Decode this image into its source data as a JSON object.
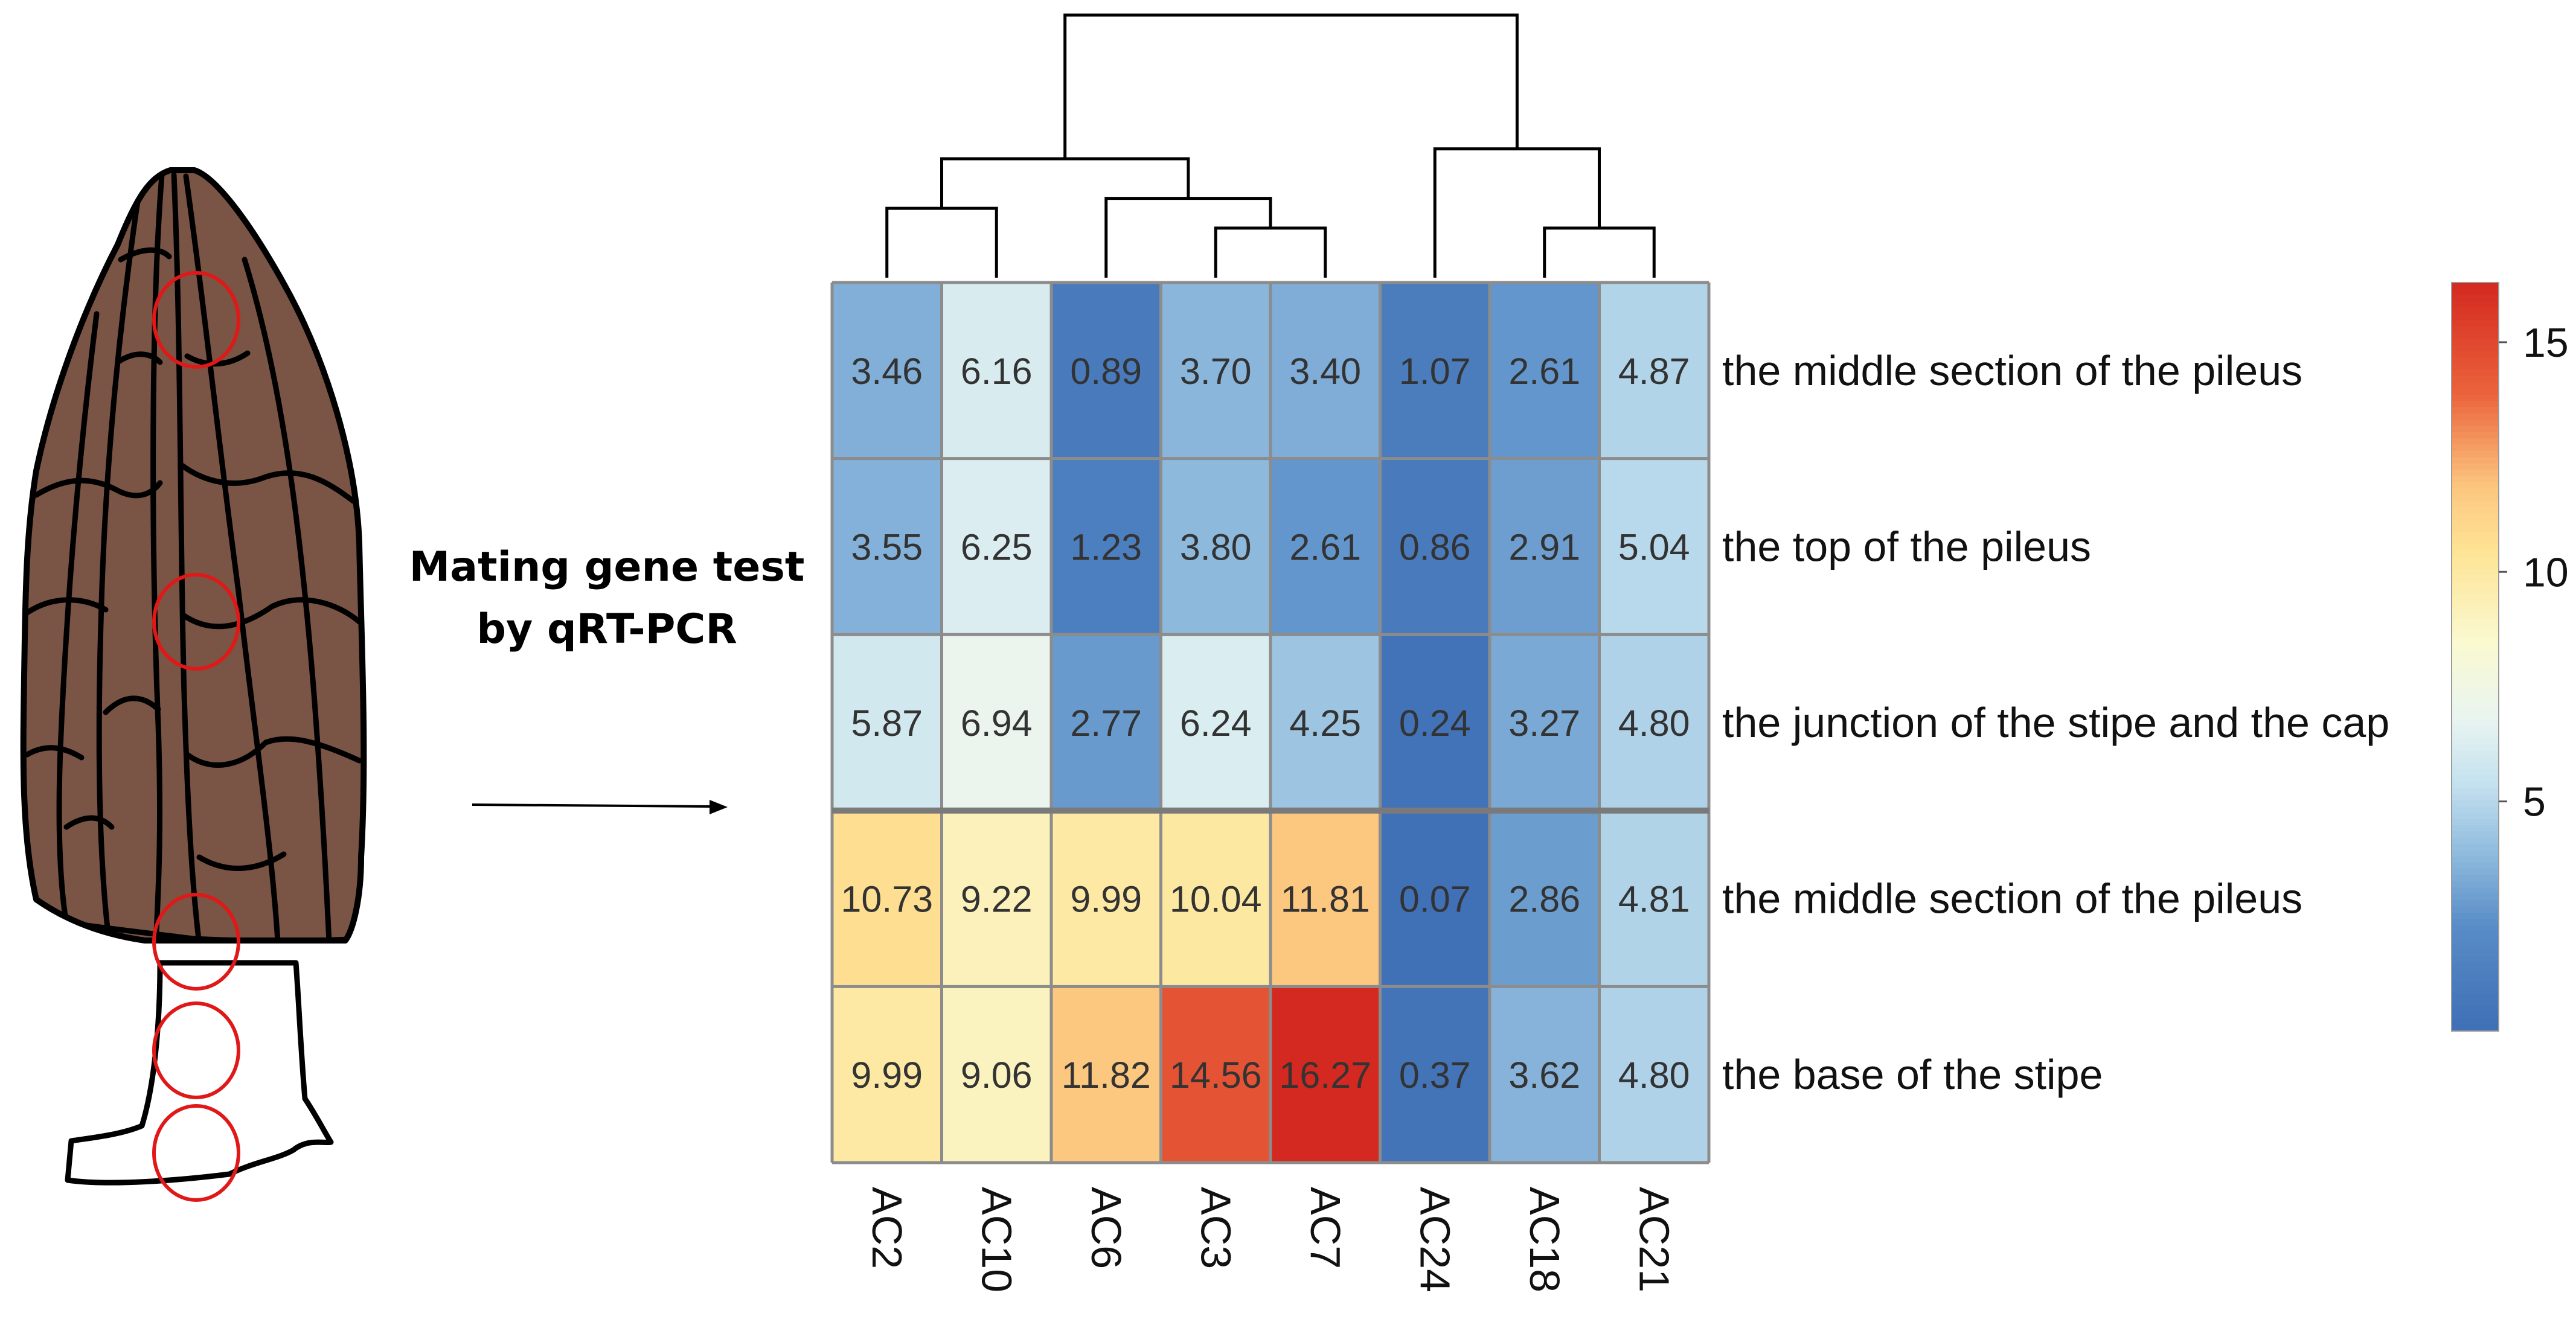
{
  "annotation": {
    "line1": "Mating gene test",
    "line2": "by qRT-PCR"
  },
  "colors": {
    "low": "#3f6fb5",
    "mid": "#f6fbdb",
    "high": "#d42a20",
    "mushroom_cap": "#7a5444",
    "sample_circle": "#e01818",
    "grid_line": "#8c8c8c"
  },
  "chart_data": {
    "type": "heatmap",
    "title": "",
    "columns": [
      "AC2",
      "AC10",
      "AC6",
      "AC3",
      "AC7",
      "AC24",
      "AC18",
      "AC21"
    ],
    "rows": [
      "the middle section of the pileus",
      "the top of the pileus",
      "the junction of the stipe and the cap",
      "the middle section of the pileus",
      "the base of the stipe"
    ],
    "values": [
      [
        3.46,
        6.16,
        0.89,
        3.7,
        3.4,
        1.07,
        2.61,
        4.87
      ],
      [
        3.55,
        6.25,
        1.23,
        3.8,
        2.61,
        0.86,
        2.91,
        5.04
      ],
      [
        5.87,
        6.94,
        2.77,
        6.24,
        4.25,
        0.24,
        3.27,
        4.8
      ],
      [
        10.73,
        9.22,
        9.99,
        10.04,
        11.81,
        0.07,
        2.86,
        4.81
      ],
      [
        9.99,
        9.06,
        11.82,
        14.56,
        16.27,
        0.37,
        3.62,
        4.8
      ]
    ],
    "value_labels": [
      [
        "3.46",
        "6.16",
        "0.89",
        "3.70",
        "3.40",
        "1.07",
        "2.61",
        "4.87"
      ],
      [
        "3.55",
        "6.25",
        "1.23",
        "3.80",
        "2.61",
        "0.86",
        "2.91",
        "5.04"
      ],
      [
        "5.87",
        "6.94",
        "2.77",
        "6.24",
        "4.25",
        "0.24",
        "3.27",
        "4.80"
      ],
      [
        "10.73",
        "9.22",
        "9.99",
        "10.04",
        "11.81",
        "0.07",
        "2.86",
        "4.81"
      ],
      [
        "9.99",
        "9.06",
        "11.82",
        "14.56",
        "16.27",
        "0.37",
        "3.62",
        "4.80"
      ]
    ],
    "row_groups": [
      [
        0,
        1,
        2
      ],
      [
        3,
        4
      ]
    ],
    "color_scale": {
      "min": 0,
      "max": 16.3,
      "midpoint": 6.5
    },
    "colorbar_ticks": [
      {
        "value": 5,
        "label": "5"
      },
      {
        "value": 10,
        "label": "10"
      },
      {
        "value": 15,
        "label": "15"
      }
    ],
    "column_dendrogram": {
      "leaves": [
        "AC2",
        "AC10",
        "AC6",
        "AC3",
        "AC7",
        "AC24",
        "AC18",
        "AC21"
      ],
      "merges": [
        {
          "a": "AC3",
          "b": "AC7",
          "height": 1
        },
        {
          "a": "AC18",
          "b": "AC21",
          "height": 1
        },
        {
          "a": "AC2",
          "b": "AC10",
          "height": 1.4
        },
        {
          "a": "AC6",
          "b": "AC3+AC7",
          "height": 1.6
        },
        {
          "a": "AC2+AC10",
          "b": "AC6+AC3+AC7",
          "height": 2.4
        },
        {
          "a": "AC24",
          "b": "AC18+AC21",
          "height": 2.6
        },
        {
          "a": "AC2+AC10+AC6+AC3+AC7",
          "b": "AC24+AC18+AC21",
          "height": 5.3
        }
      ]
    }
  }
}
